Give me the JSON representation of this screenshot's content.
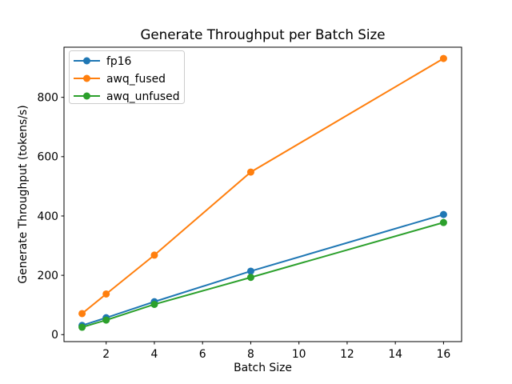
{
  "chart_data": {
    "type": "line",
    "title": "Generate Throughput per Batch Size",
    "xlabel": "Batch Size",
    "ylabel": "Generate Throughput (tokens/s)",
    "x": [
      1,
      2,
      4,
      8,
      16
    ],
    "series": [
      {
        "name": "fp16",
        "color": "#1f77b4",
        "values": [
          31,
          57,
          111,
          214,
          405
        ]
      },
      {
        "name": "awq_fused",
        "color": "#ff7f0e",
        "values": [
          71,
          137,
          268,
          548,
          931
        ]
      },
      {
        "name": "awq_unfused",
        "color": "#2ca02c",
        "values": [
          25,
          49,
          102,
          193,
          378
        ]
      }
    ],
    "xticks": [
      2,
      4,
      6,
      8,
      10,
      12,
      14,
      16
    ],
    "yticks": [
      0,
      200,
      400,
      600,
      800
    ],
    "xlim": [
      0.25,
      16.75
    ],
    "ylim": [
      -23.5,
      969
    ],
    "grid": false,
    "marker": "circle",
    "line_width": 2,
    "legend": {
      "position": "upper-left",
      "labels": [
        "fp16",
        "awq_fused",
        "awq_unfused"
      ],
      "border_color": "#cccccc",
      "background": "#ffffff"
    },
    "axis_color": "#000000",
    "text_color": "#000000",
    "background": "#ffffff"
  }
}
